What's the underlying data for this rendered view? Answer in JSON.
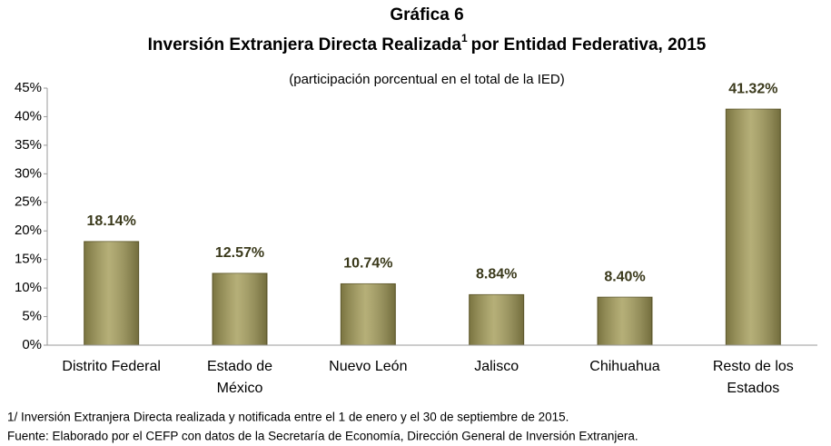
{
  "chart_data": {
    "type": "bar",
    "title": "Gráfica 6",
    "subtitle": {
      "text": "Inversión Extranjera Directa Realizada",
      "superscript": "1",
      "continuation": "por Entidad Federativa, 2015"
    },
    "caption": "(participación porcentual en el total de la IED)",
    "categories": [
      [
        "Distrito Federal"
      ],
      [
        "Estado de",
        "México"
      ],
      [
        "Nuevo León"
      ],
      [
        "Jalisco"
      ],
      [
        "Chihuahua"
      ],
      [
        "Resto de los",
        "Estados"
      ]
    ],
    "values": [
      18.14,
      12.57,
      10.74,
      8.84,
      8.4,
      41.32
    ],
    "value_labels": [
      "18.14%",
      "12.57%",
      "10.74%",
      "8.84%",
      "8.40%",
      "41.32%"
    ],
    "color": "#a39b56",
    "ylim": [
      0,
      45
    ],
    "yticks": [
      {
        "value": 0,
        "label": "0%"
      },
      {
        "value": 5,
        "label": "5%"
      },
      {
        "value": 10,
        "label": "10%"
      },
      {
        "value": 15,
        "label": "15%"
      },
      {
        "value": 20,
        "label": "20%"
      },
      {
        "value": 25,
        "label": "25%"
      },
      {
        "value": 30,
        "label": "30%"
      },
      {
        "value": 35,
        "label": "35%"
      },
      {
        "value": 40,
        "label": "40%"
      },
      {
        "value": 45,
        "label": "45%"
      }
    ],
    "grid": false,
    "notes": [
      "1/ Inversión Extranjera Directa realizada y notificada entre el 1 de enero y el 30 de septiembre de 2015.",
      "Fuente: Elaborado por el CEFP con datos de la Secretaría de Economía, Dirección General de Inversión Extranjera."
    ]
  }
}
